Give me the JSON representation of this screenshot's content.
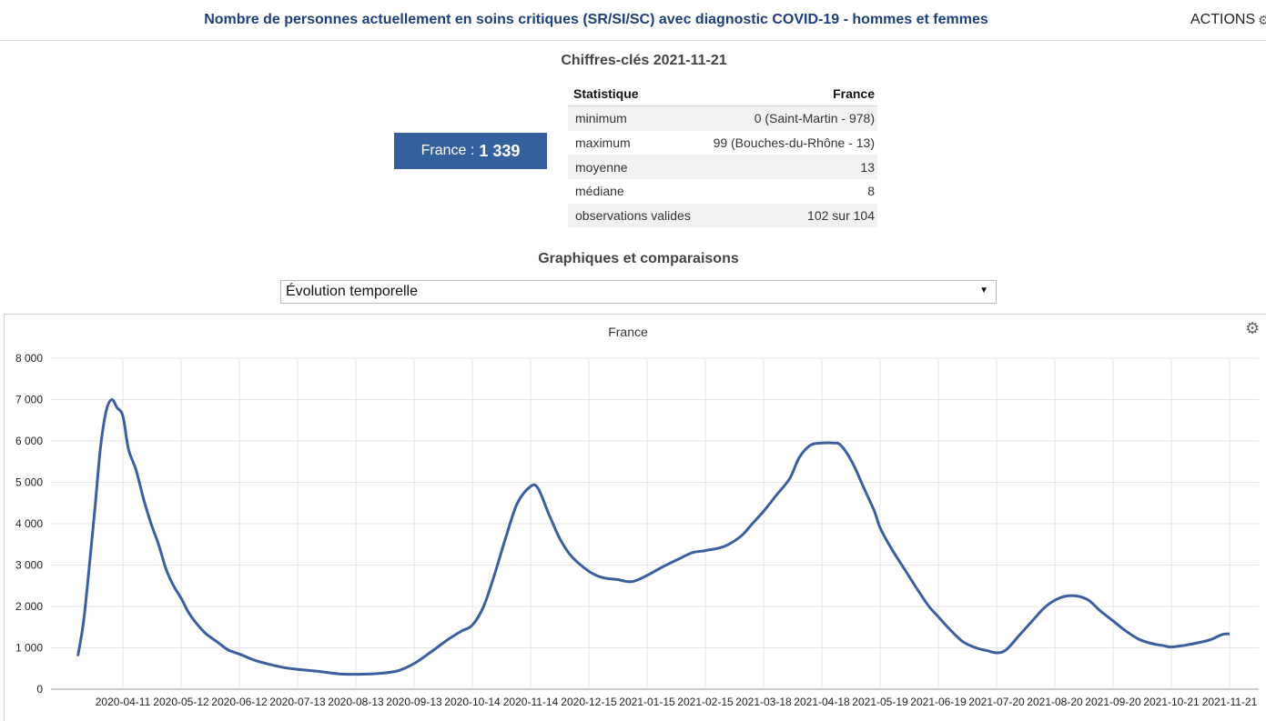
{
  "header": {
    "title": "Nombre de personnes actuellement en soins critiques (SR/SI/SC) avec diagnostic COVID-19 - hommes et femmes",
    "actions_label": "ACTIONS"
  },
  "key_figures": {
    "title": "Chiffres-clés 2021-11-21",
    "summary_label": "France :",
    "summary_value": "1 339",
    "table": {
      "headers": [
        "Statistique",
        "France"
      ],
      "rows": [
        [
          "minimum",
          "0 (Saint-Martin - 978)"
        ],
        [
          "maximum",
          "99 (Bouches-du-Rhône - 13)"
        ],
        [
          "moyenne",
          "13"
        ],
        [
          "médiane",
          "8"
        ],
        [
          "observations valides",
          "102 sur 104"
        ]
      ]
    }
  },
  "graphs": {
    "title": "Graphiques et comparaisons",
    "select_value": "Évolution temporelle"
  },
  "colors": {
    "line": "#3b5f9e",
    "accent": "#35609e",
    "title": "#1f3f7a"
  },
  "icons": {
    "actions": "gear-icon",
    "chart_menu": "gear-icon",
    "select": "caret-down-icon"
  },
  "chart_data": {
    "type": "line",
    "title": "France",
    "ylim": [
      0,
      8000
    ],
    "yticks": [
      0,
      1000,
      2000,
      3000,
      4000,
      5000,
      6000,
      7000,
      8000
    ],
    "ytick_labels": [
      "0",
      "1 000",
      "2 000",
      "3 000",
      "4 000",
      "5 000",
      "6 000",
      "7 000",
      "8 000"
    ],
    "xticks": [
      "2020-04-11",
      "2020-05-12",
      "2020-06-12",
      "2020-07-13",
      "2020-08-13",
      "2020-09-13",
      "2020-10-14",
      "2020-11-14",
      "2020-12-15",
      "2021-01-15",
      "2021-02-15",
      "2021-03-18",
      "2021-04-18",
      "2021-05-19",
      "2021-06-19",
      "2021-07-20",
      "2021-08-20",
      "2021-09-20",
      "2021-10-21",
      "2021-11-21"
    ],
    "grid": true,
    "legend": "none",
    "series": [
      {
        "points": [
          [
            "2020-03-18",
            800
          ],
          [
            "2020-03-21",
            1600
          ],
          [
            "2020-03-24",
            2900
          ],
          [
            "2020-03-27",
            4300
          ],
          [
            "2020-03-30",
            5800
          ],
          [
            "2020-04-02",
            6700
          ],
          [
            "2020-04-05",
            7000
          ],
          [
            "2020-04-08",
            6800
          ],
          [
            "2020-04-11",
            6600
          ],
          [
            "2020-04-14",
            5800
          ],
          [
            "2020-04-18",
            5300
          ],
          [
            "2020-04-22",
            4600
          ],
          [
            "2020-04-26",
            4000
          ],
          [
            "2020-04-30",
            3500
          ],
          [
            "2020-05-04",
            2900
          ],
          [
            "2020-05-08",
            2500
          ],
          [
            "2020-05-12",
            2200
          ],
          [
            "2020-05-16",
            1850
          ],
          [
            "2020-05-20",
            1600
          ],
          [
            "2020-05-25",
            1350
          ],
          [
            "2020-05-31",
            1150
          ],
          [
            "2020-06-06",
            950
          ],
          [
            "2020-06-12",
            850
          ],
          [
            "2020-06-20",
            700
          ],
          [
            "2020-06-28",
            600
          ],
          [
            "2020-07-06",
            520
          ],
          [
            "2020-07-13",
            480
          ],
          [
            "2020-07-24",
            430
          ],
          [
            "2020-08-04",
            370
          ],
          [
            "2020-08-13",
            360
          ],
          [
            "2020-08-25",
            380
          ],
          [
            "2020-09-04",
            440
          ],
          [
            "2020-09-13",
            620
          ],
          [
            "2020-09-22",
            900
          ],
          [
            "2020-10-01",
            1200
          ],
          [
            "2020-10-08",
            1400
          ],
          [
            "2020-10-14",
            1550
          ],
          [
            "2020-10-20",
            2000
          ],
          [
            "2020-10-26",
            2800
          ],
          [
            "2020-11-01",
            3700
          ],
          [
            "2020-11-07",
            4500
          ],
          [
            "2020-11-14",
            4900
          ],
          [
            "2020-11-18",
            4850
          ],
          [
            "2020-11-24",
            4200
          ],
          [
            "2020-11-30",
            3600
          ],
          [
            "2020-12-06",
            3200
          ],
          [
            "2020-12-15",
            2850
          ],
          [
            "2020-12-22",
            2700
          ],
          [
            "2020-12-30",
            2650
          ],
          [
            "2021-01-07",
            2600
          ],
          [
            "2021-01-15",
            2750
          ],
          [
            "2021-01-23",
            2950
          ],
          [
            "2021-02-01",
            3150
          ],
          [
            "2021-02-08",
            3300
          ],
          [
            "2021-02-15",
            3350
          ],
          [
            "2021-02-25",
            3450
          ],
          [
            "2021-03-06",
            3700
          ],
          [
            "2021-03-12",
            4000
          ],
          [
            "2021-03-18",
            4300
          ],
          [
            "2021-03-25",
            4700
          ],
          [
            "2021-04-01",
            5100
          ],
          [
            "2021-04-06",
            5600
          ],
          [
            "2021-04-12",
            5900
          ],
          [
            "2021-04-18",
            5950
          ],
          [
            "2021-04-24",
            5950
          ],
          [
            "2021-04-28",
            5900
          ],
          [
            "2021-05-04",
            5500
          ],
          [
            "2021-05-10",
            4900
          ],
          [
            "2021-05-16",
            4300
          ],
          [
            "2021-05-19",
            3900
          ],
          [
            "2021-05-25",
            3400
          ],
          [
            "2021-06-01",
            2900
          ],
          [
            "2021-06-08",
            2400
          ],
          [
            "2021-06-14",
            2000
          ],
          [
            "2021-06-19",
            1750
          ],
          [
            "2021-06-25",
            1450
          ],
          [
            "2021-07-02",
            1150
          ],
          [
            "2021-07-09",
            1000
          ],
          [
            "2021-07-15",
            930
          ],
          [
            "2021-07-20",
            880
          ],
          [
            "2021-07-25",
            950
          ],
          [
            "2021-08-01",
            1300
          ],
          [
            "2021-08-08",
            1650
          ],
          [
            "2021-08-14",
            1950
          ],
          [
            "2021-08-20",
            2150
          ],
          [
            "2021-08-26",
            2250
          ],
          [
            "2021-09-01",
            2250
          ],
          [
            "2021-09-07",
            2150
          ],
          [
            "2021-09-13",
            1900
          ],
          [
            "2021-09-20",
            1650
          ],
          [
            "2021-09-27",
            1400
          ],
          [
            "2021-10-04",
            1200
          ],
          [
            "2021-10-11",
            1100
          ],
          [
            "2021-10-17",
            1050
          ],
          [
            "2021-10-21",
            1020
          ],
          [
            "2021-10-28",
            1060
          ],
          [
            "2021-11-04",
            1120
          ],
          [
            "2021-11-11",
            1200
          ],
          [
            "2021-11-17",
            1320
          ],
          [
            "2021-11-21",
            1339
          ]
        ]
      }
    ]
  }
}
